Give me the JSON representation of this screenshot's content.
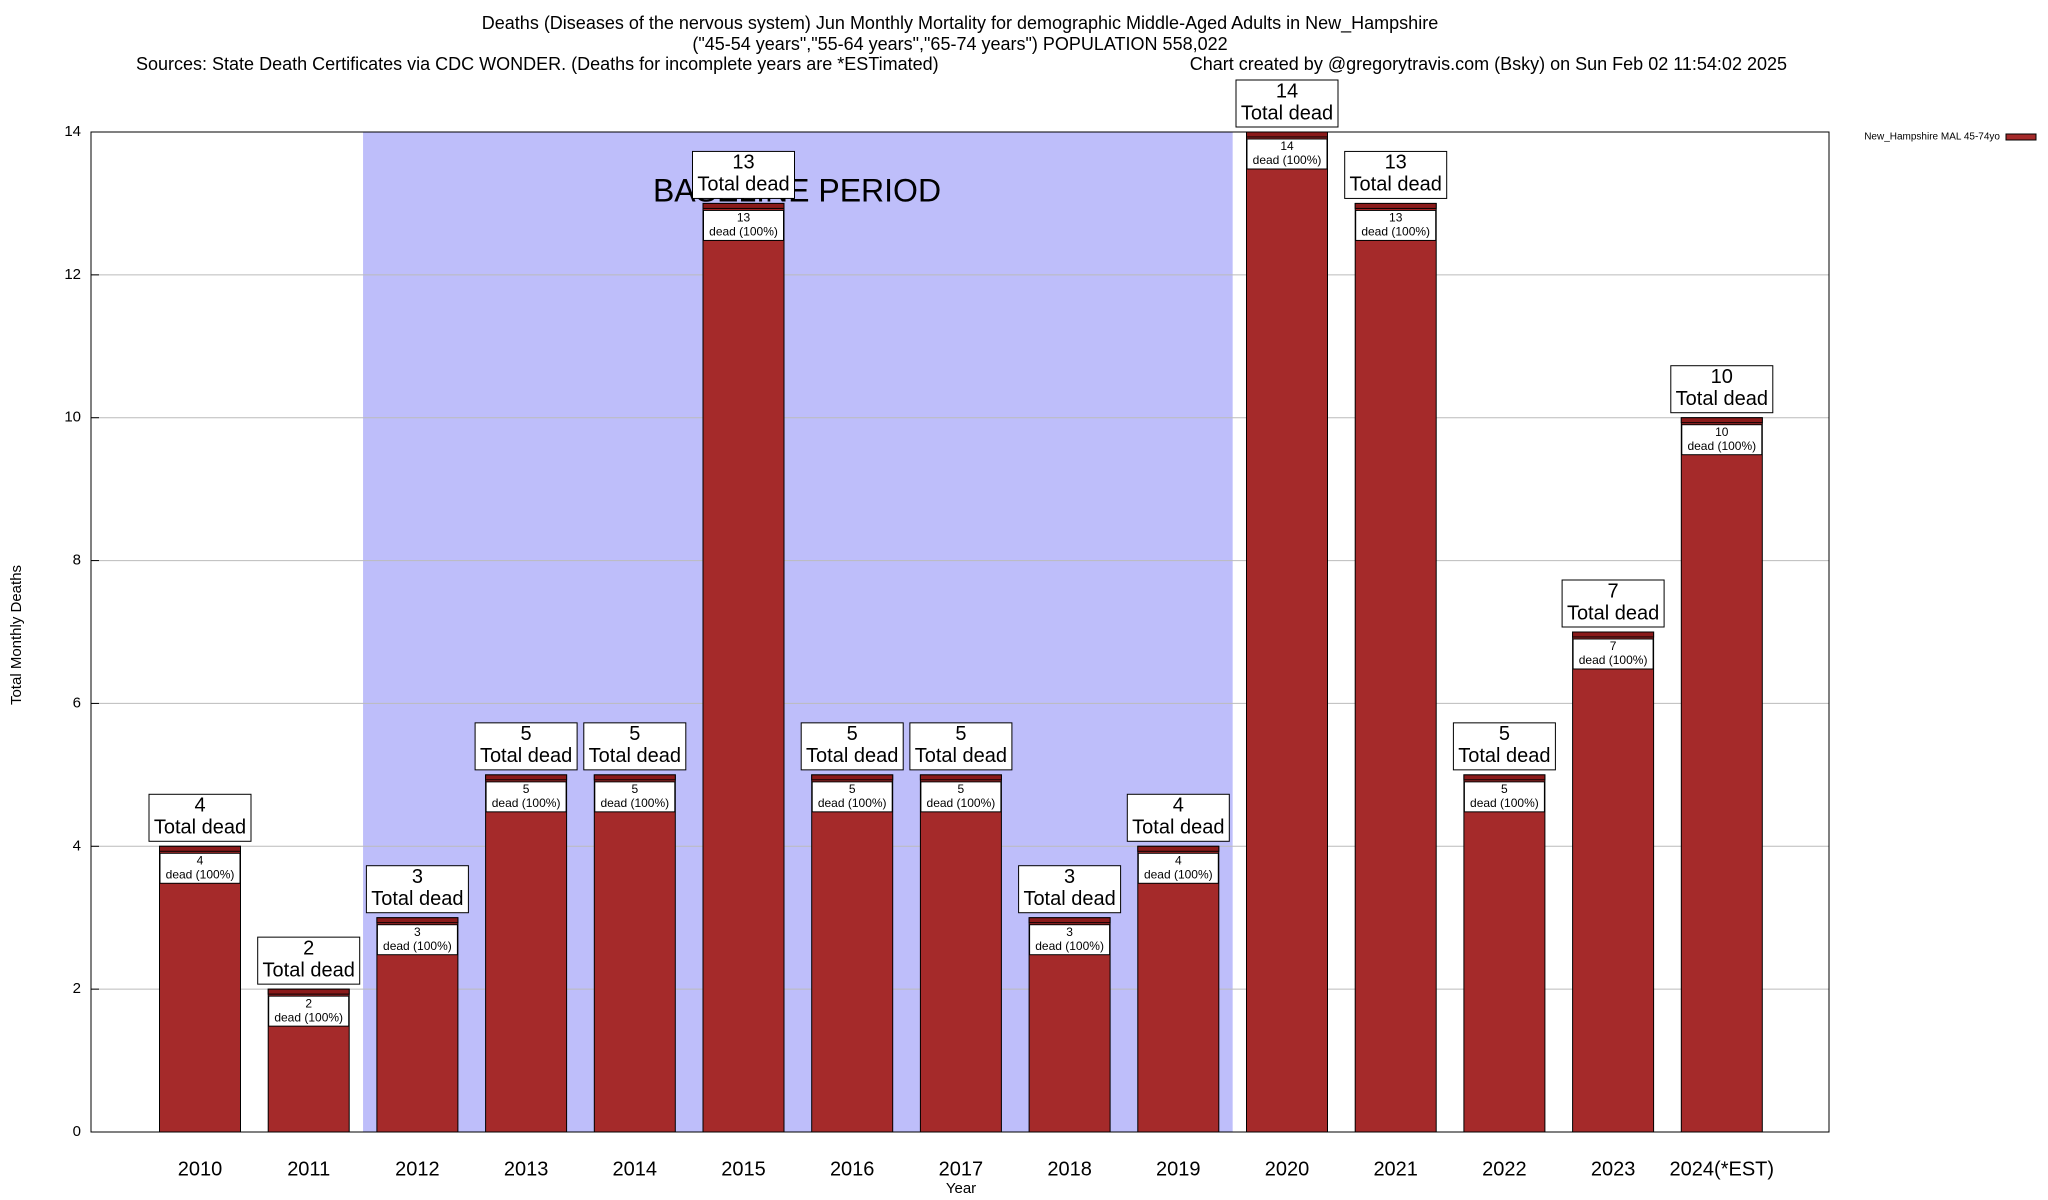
{
  "chart_data": {
    "type": "bar",
    "title": "Deaths (Diseases of the nervous system) Jun Monthly Mortality for demographic Middle-Aged Adults in New_Hampshire",
    "subtitle": "(\"45-54 years\",\"55-64 years\",\"65-74 years\") POPULATION 558,022",
    "source": "Sources: State Death Certificates via CDC WONDER. (Deaths for incomplete years are *ESTimated)",
    "credit": "Chart created by @gregorytravis.com (Bsky) on Sun Feb 02 11:54:02 2025",
    "x_label": "Year",
    "y_label": "Total Monthly Deaths",
    "categories": [
      "2010",
      "2011",
      "2012",
      "2013",
      "2014",
      "2015",
      "2016",
      "2017",
      "2018",
      "2019",
      "2020",
      "2021",
      "2022",
      "2023",
      "2024(*EST)"
    ],
    "series": [
      {
        "name": "New_Hampshire MAL 45-74yo",
        "color": "#a52a2a",
        "values": [
          4,
          2,
          3,
          5,
          5,
          13,
          5,
          5,
          3,
          4,
          14,
          13,
          5,
          7,
          10
        ]
      }
    ],
    "total_label": "Total dead",
    "inner_label": "dead (100%)",
    "shaded_span": {
      "label": "BASELINE PERIOD",
      "from": "2012",
      "to": "2019",
      "color": "#bebefa"
    },
    "ylim": [
      0,
      14
    ],
    "yticks": [
      0,
      2,
      4,
      6,
      8,
      10,
      12,
      14
    ],
    "grid": true,
    "legend": "top-right"
  }
}
